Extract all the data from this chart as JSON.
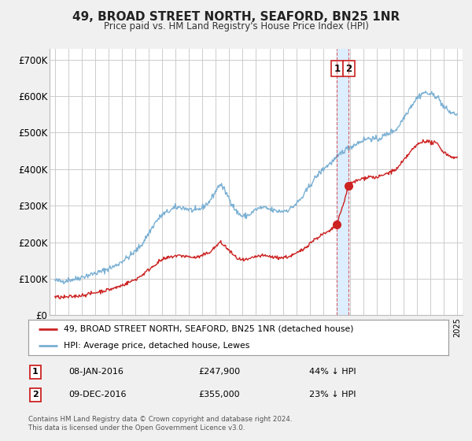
{
  "title": "49, BROAD STREET NORTH, SEAFORD, BN25 1NR",
  "subtitle": "Price paid vs. HM Land Registry's House Price Index (HPI)",
  "ylabel_ticks": [
    "£0",
    "£100K",
    "£200K",
    "£300K",
    "£400K",
    "£500K",
    "£600K",
    "£700K"
  ],
  "ytick_vals": [
    0,
    100000,
    200000,
    300000,
    400000,
    500000,
    600000,
    700000
  ],
  "ylim": [
    0,
    730000
  ],
  "hpi_color": "#7ab0d4",
  "price_color": "#cc2222",
  "shade_color": "#ddeeff",
  "marker1_date": 2016.04,
  "marker2_date": 2016.92,
  "marker1_price": 247900,
  "marker2_price": 355000,
  "legend_label1": "49, BROAD STREET NORTH, SEAFORD, BN25 1NR (detached house)",
  "legend_label2": "HPI: Average price, detached house, Lewes",
  "ann1_date": "08-JAN-2016",
  "ann2_date": "09-DEC-2016",
  "ann1_price": "£247,900",
  "ann2_price": "£355,000",
  "ann1_pct": "44% ↓ HPI",
  "ann2_pct": "23% ↓ HPI",
  "copyright": "Contains HM Land Registry data © Crown copyright and database right 2024.\nThis data is licensed under the Open Government Licence v3.0.",
  "bg_color": "#f0f0f0",
  "plot_bg": "#ffffff",
  "grid_color": "#cccccc",
  "xlim_left": 1994.6,
  "xlim_right": 2025.4
}
